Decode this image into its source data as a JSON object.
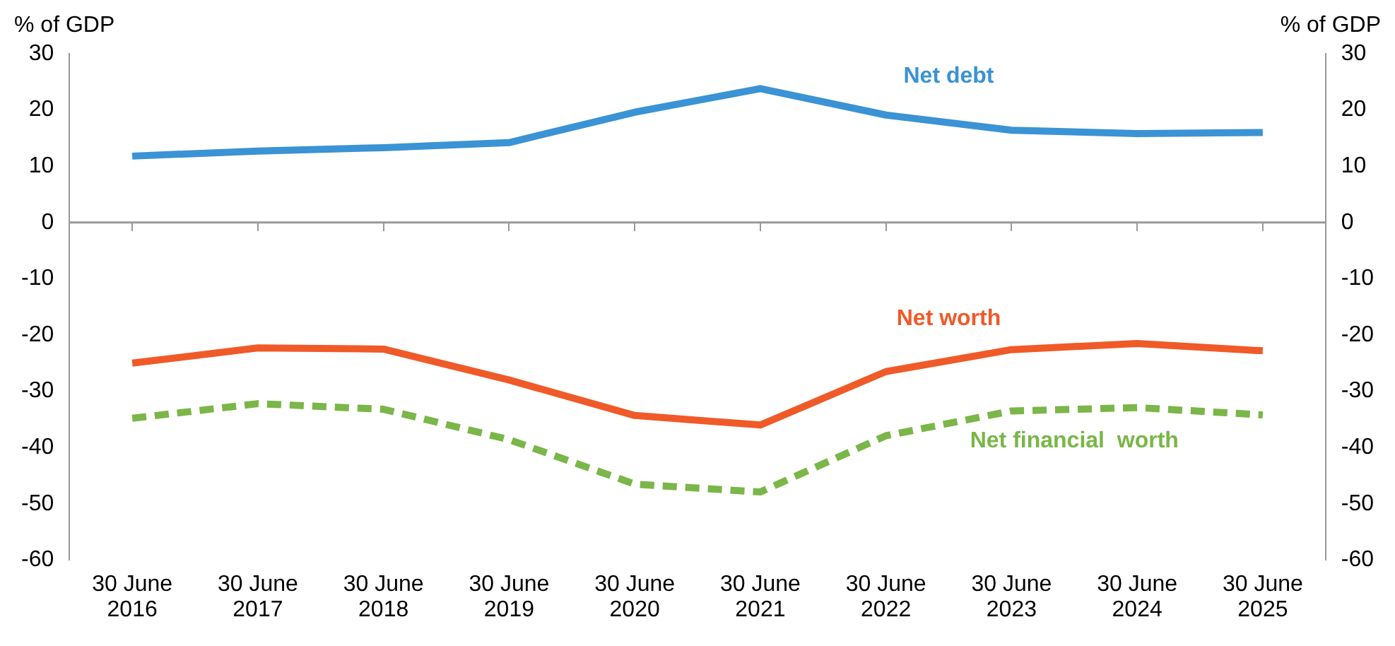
{
  "chart_data": {
    "type": "line",
    "ylabel": "% of GDP",
    "y2label": "% of GDP",
    "categories": [
      "30 June 2016",
      "30 June 2017",
      "30 June 2018",
      "30 June 2019",
      "30 June 2020",
      "30 June 2021",
      "30 June 2022",
      "30 June 2023",
      "30 June 2024",
      "30 June 2025"
    ],
    "series": [
      {
        "name": "Net debt",
        "color": "#3a93d4",
        "line_style": "solid",
        "values": [
          11.8,
          12.7,
          13.3,
          14.2,
          19.6,
          23.8,
          19.1,
          16.4,
          15.8,
          16.0
        ]
      },
      {
        "name": "Net worth",
        "color": "#f05a28",
        "line_style": "solid",
        "values": [
          -25.0,
          -22.3,
          -22.5,
          -28.0,
          -34.3,
          -36.0,
          -26.5,
          -22.6,
          -21.5,
          -22.8
        ]
      },
      {
        "name": "Net financial  worth",
        "color": "#7ab648",
        "line_style": "dashed",
        "values": [
          -34.8,
          -32.2,
          -33.2,
          -38.6,
          -46.5,
          -47.9,
          -37.9,
          -33.5,
          -32.9,
          -34.2
        ]
      }
    ],
    "ylim": [
      -60,
      30
    ],
    "yticks": [
      -60,
      -50,
      -40,
      -30,
      -20,
      -10,
      0,
      10,
      20,
      30
    ],
    "y2lim": [
      -60,
      30
    ],
    "y2ticks": [
      -60,
      -50,
      -40,
      -30,
      -20,
      -10,
      0,
      10,
      20,
      30
    ],
    "ref_lines": [
      {
        "axis": "y",
        "value": 0,
        "color": "#999999",
        "line_style": "solid"
      }
    ],
    "grid": false,
    "legend": false,
    "marker": "none"
  }
}
